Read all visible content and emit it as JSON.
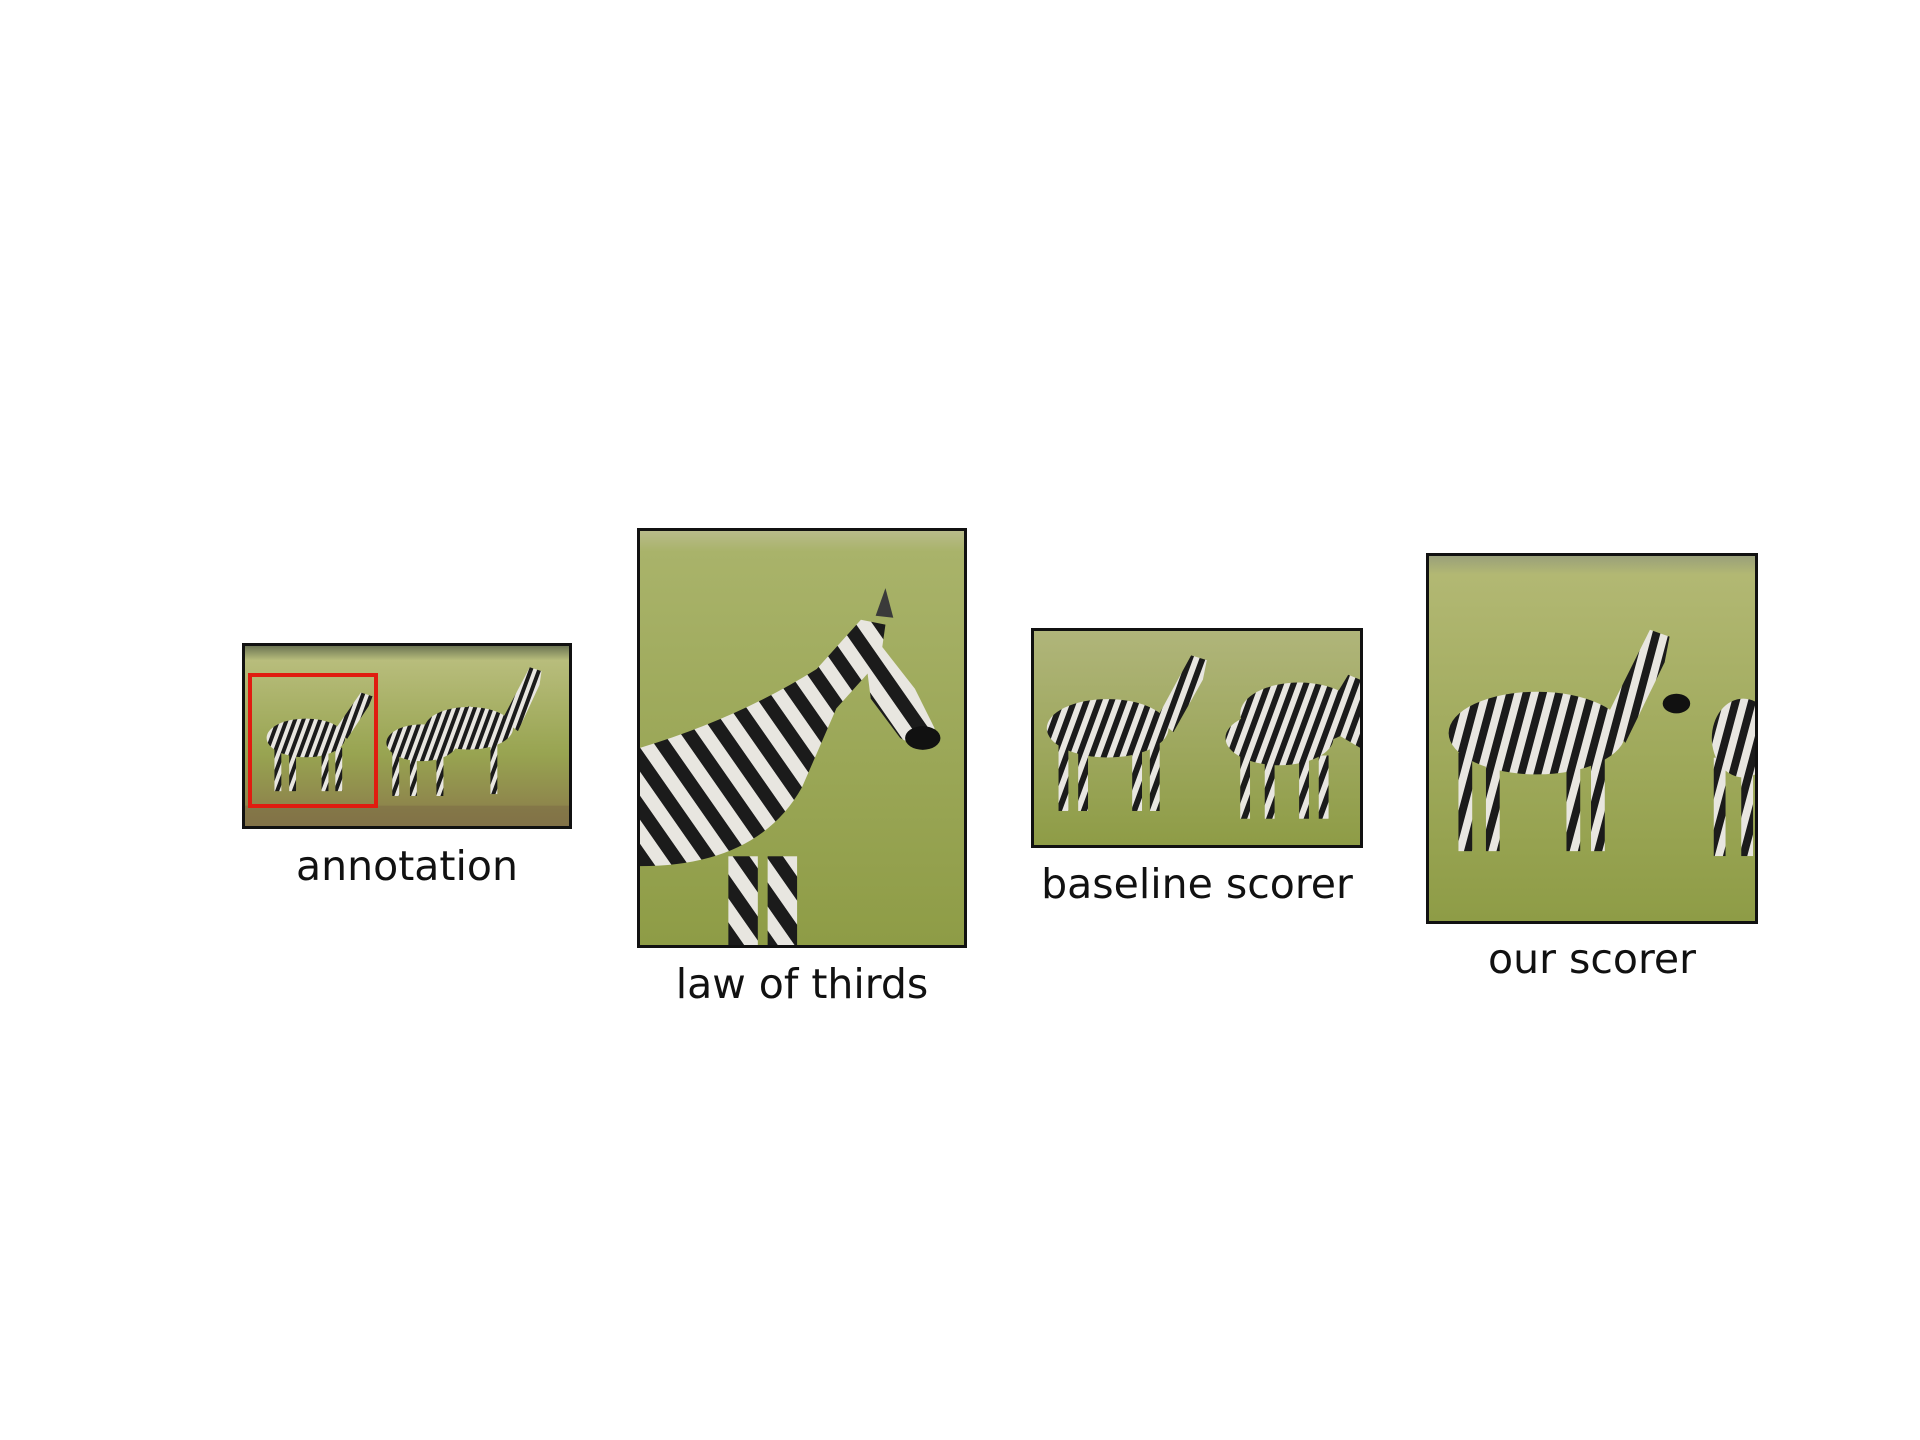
{
  "panels": [
    {
      "caption": "annotation"
    },
    {
      "caption": "law of thirds"
    },
    {
      "caption": "baseline scorer"
    },
    {
      "caption": "our scorer"
    }
  ],
  "colors": {
    "frame_border": "#111111",
    "annotation_box": "#e01c10",
    "grass_light": "#b5ba76",
    "grass_dark": "#7f8c42",
    "zebra_black": "#1b1b1b",
    "zebra_white": "#e8e6e0"
  }
}
